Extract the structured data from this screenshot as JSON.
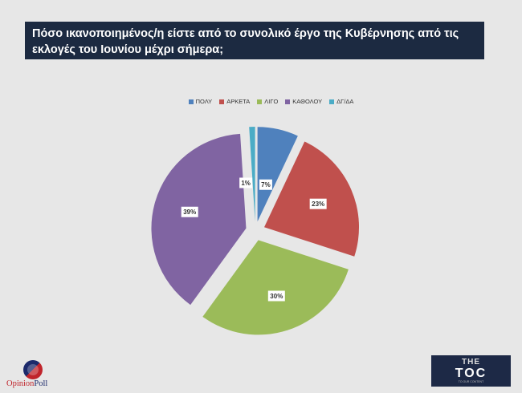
{
  "title": "Πόσο ικανοποιημένος/η είστε από το συνολικό έργο της Κυβέρνησης από τις εκλογές του Ιουνίου μέχρι σήμερα;",
  "chart_data": {
    "type": "pie",
    "categories": [
      "ΠΟΛΥ",
      "ΑΡΚΕΤΑ",
      "ΛΙΓΟ",
      "ΚΑΘΟΛΟΥ",
      "ΔΓ/ΔΑ"
    ],
    "values": [
      7,
      23,
      30,
      39,
      1
    ],
    "labels": [
      "7%",
      "23%",
      "30%",
      "39%",
      "1%"
    ],
    "colors": [
      "#4f81bd",
      "#c0504d",
      "#9bbb59",
      "#8064a2",
      "#4bacc6"
    ],
    "exploded": true,
    "legend_position": "top"
  },
  "logos": {
    "left_part1": "Opinion",
    "left_part2": "Poll",
    "right_top": "THE",
    "right_main": "TOC",
    "right_sub": "TO OUR CONTENT"
  }
}
